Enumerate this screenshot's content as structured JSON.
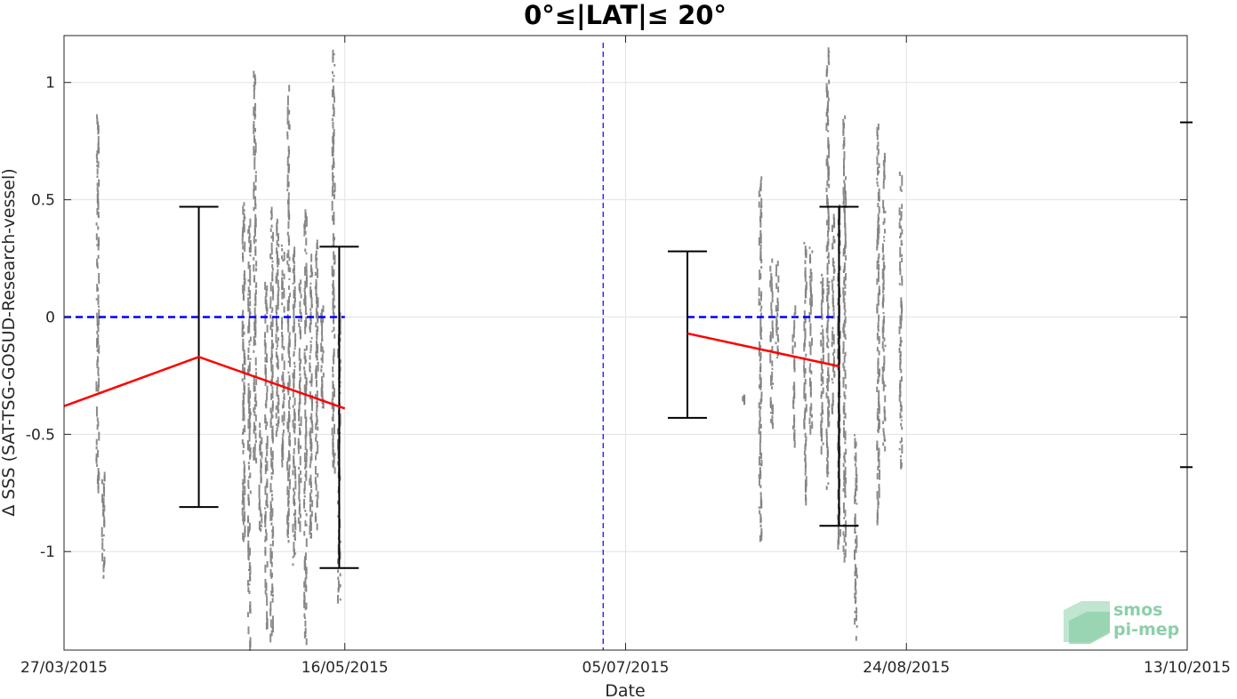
{
  "chart_data": {
    "type": "scatter",
    "title": "0°≤|LAT|≤ 20°",
    "xlabel": "Date",
    "ylabel": "Δ SSS (SAT-TSG-GOSUD-Research-vessel)",
    "x_ticks": [
      "27/03/2015",
      "16/05/2015",
      "05/07/2015",
      "24/08/2015",
      "13/10/2015"
    ],
    "y_ticks": [
      -1,
      -0.5,
      0,
      0.5,
      1
    ],
    "y_tick_labels": [
      "-1",
      "-0.5",
      "0",
      "0.5",
      "1"
    ],
    "xlim": [
      "2015-03-27",
      "2015-10-13"
    ],
    "ylim": [
      -1.42,
      1.2
    ],
    "grid": true,
    "colors": {
      "scatter": "#7f7f7f",
      "mean_line": "#ff0000",
      "zero_line": "#0000ff",
      "divider": "#0000ff",
      "error_bars": "#000000",
      "logo": "#8ccfaa"
    },
    "divider_date": "2015-07-01",
    "segments": [
      {
        "mean_line": [
          [
            "2015-03-27",
            -0.38
          ],
          [
            "2015-04-20",
            -0.17
          ],
          [
            "2015-05-16",
            -0.39
          ]
        ],
        "zero_line": [
          [
            "2015-03-27",
            0
          ],
          [
            "2015-05-16",
            0
          ]
        ],
        "error_bars": [
          {
            "x": "2015-04-20",
            "low": -0.81,
            "high": 0.47
          },
          {
            "x": "2015-05-15",
            "low": -1.07,
            "high": 0.3
          }
        ]
      },
      {
        "mean_line": [
          [
            "2015-07-16",
            -0.07
          ],
          [
            "2015-08-12",
            -0.21
          ]
        ],
        "zero_line": [
          [
            "2015-07-16",
            0
          ],
          [
            "2015-08-12",
            0
          ]
        ],
        "error_bars": [
          {
            "x": "2015-07-16",
            "low": -0.43,
            "high": 0.28
          },
          {
            "x": "2015-08-12",
            "low": -0.89,
            "high": 0.47
          }
        ]
      }
    ],
    "outside_ticks_y": [
      0.83,
      -0.64
    ],
    "scatter_columns": [
      {
        "x": "2015-04-02",
        "y0": -0.72,
        "y1": 0.88
      },
      {
        "x": "2015-04-03",
        "y0": -1.1,
        "y1": -0.66
      },
      {
        "x": "2015-04-28",
        "y0": -0.95,
        "y1": 0.49
      },
      {
        "x": "2015-04-29",
        "y0": -1.38,
        "y1": 0.42
      },
      {
        "x": "2015-04-30",
        "y0": -0.6,
        "y1": 1.05
      },
      {
        "x": "2015-05-01",
        "y0": -0.9,
        "y1": -0.45
      },
      {
        "x": "2015-05-02",
        "y0": -1.3,
        "y1": 0.15
      },
      {
        "x": "2015-05-03",
        "y0": -1.35,
        "y1": 0.47
      },
      {
        "x": "2015-05-04",
        "y0": -0.5,
        "y1": 0.45
      },
      {
        "x": "2015-05-05",
        "y0": -0.65,
        "y1": 0.34
      },
      {
        "x": "2015-05-06",
        "y0": -0.95,
        "y1": 0.99
      },
      {
        "x": "2015-05-07",
        "y0": -1.05,
        "y1": 0.3
      },
      {
        "x": "2015-05-08",
        "y0": -0.9,
        "y1": 0.16
      },
      {
        "x": "2015-05-09",
        "y0": -1.37,
        "y1": 0.49
      },
      {
        "x": "2015-05-10",
        "y0": -0.95,
        "y1": 0.27
      },
      {
        "x": "2015-05-11",
        "y0": -0.88,
        "y1": 0.33
      },
      {
        "x": "2015-05-12",
        "y0": -0.38,
        "y1": 0.05
      },
      {
        "x": "2015-05-14",
        "y0": -0.64,
        "y1": 1.14
      },
      {
        "x": "2015-05-15",
        "y0": -1.2,
        "y1": 0.02
      },
      {
        "x": "2015-07-26",
        "y0": -0.34,
        "y1": -0.33
      },
      {
        "x": "2015-07-29",
        "y0": -0.93,
        "y1": 0.6
      },
      {
        "x": "2015-07-31",
        "y0": -0.45,
        "y1": 0.25
      },
      {
        "x": "2015-08-01",
        "y0": -0.2,
        "y1": 0.24
      },
      {
        "x": "2015-08-04",
        "y0": -0.54,
        "y1": 0.05
      },
      {
        "x": "2015-08-06",
        "y0": -0.77,
        "y1": 0.32
      },
      {
        "x": "2015-08-07",
        "y0": -0.46,
        "y1": 0.3
      },
      {
        "x": "2015-08-09",
        "y0": -0.55,
        "y1": 0.2
      },
      {
        "x": "2015-08-10",
        "y0": -0.72,
        "y1": 1.15
      },
      {
        "x": "2015-08-11",
        "y0": -0.4,
        "y1": 0.44
      },
      {
        "x": "2015-08-12",
        "y0": -0.95,
        "y1": 0.48
      },
      {
        "x": "2015-08-13",
        "y0": -1.02,
        "y1": 0.86
      },
      {
        "x": "2015-08-15",
        "y0": -1.36,
        "y1": -0.5
      },
      {
        "x": "2015-08-19",
        "y0": -0.88,
        "y1": 0.84
      },
      {
        "x": "2015-08-20",
        "y0": -0.55,
        "y1": 0.7
      },
      {
        "x": "2015-08-23",
        "y0": -0.62,
        "y1": 0.62
      }
    ]
  },
  "logo": {
    "line1": "smos",
    "line2": "pi-mep"
  }
}
